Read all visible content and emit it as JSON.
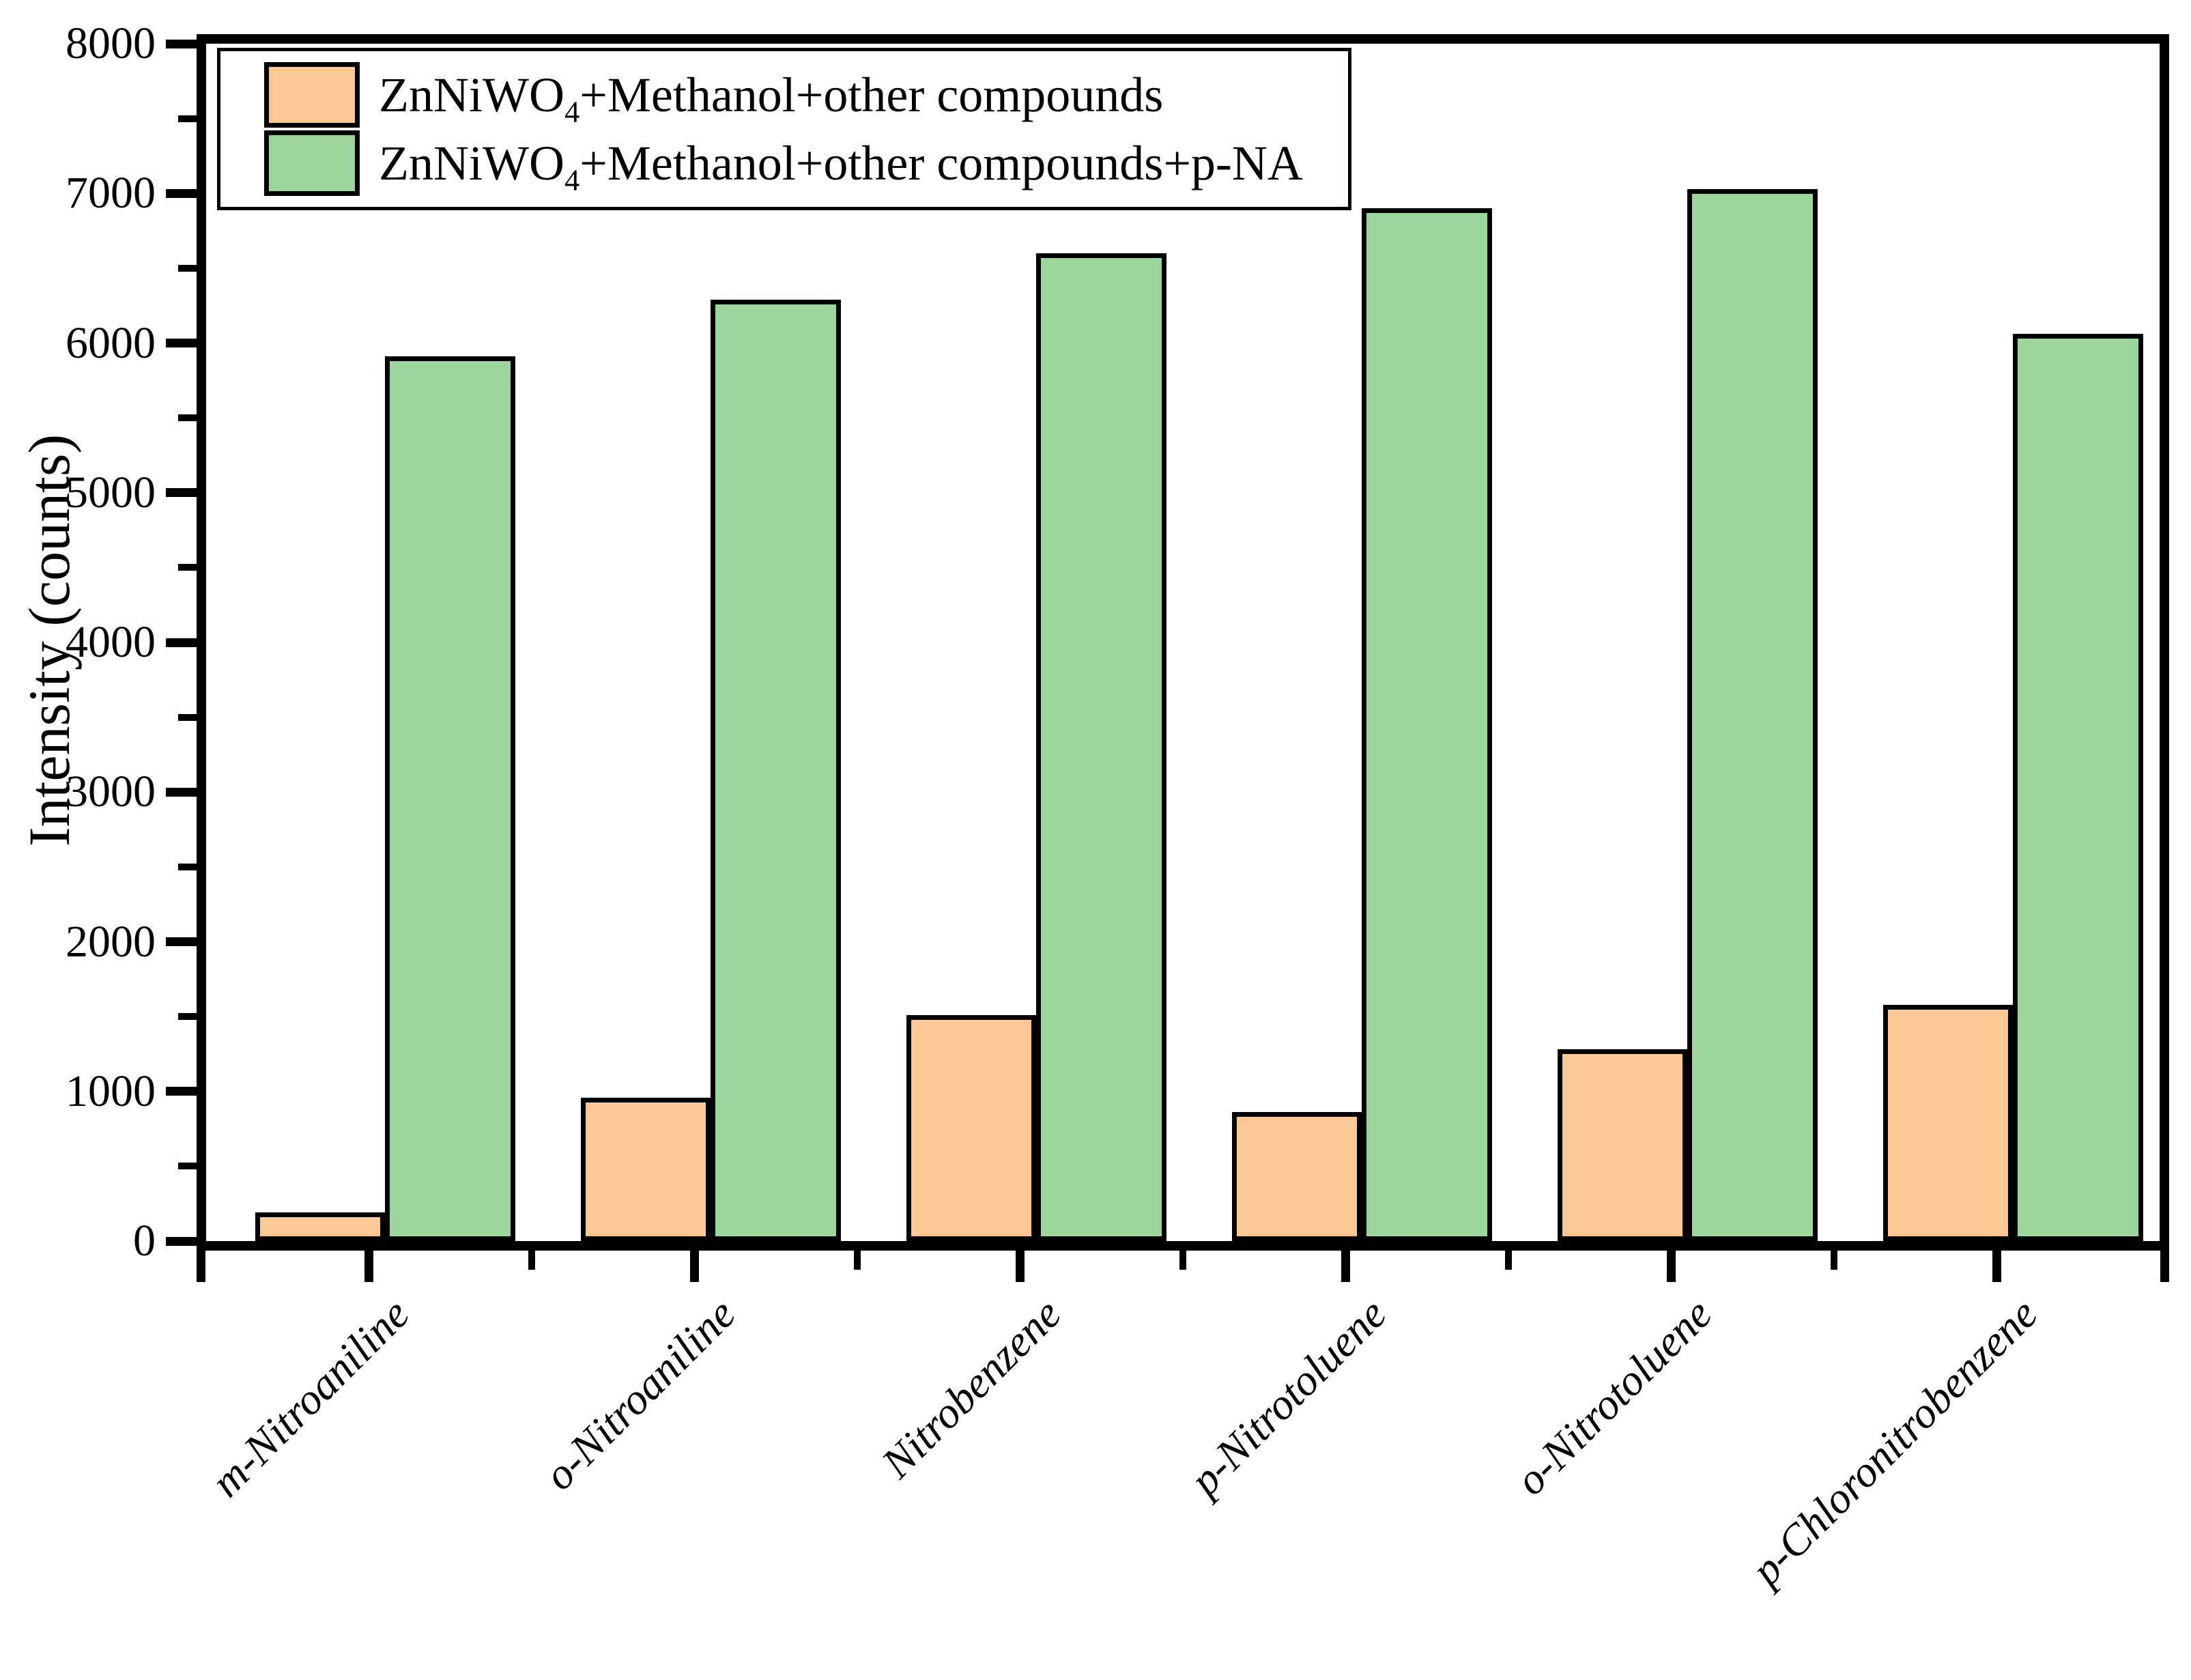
{
  "chart_data": {
    "type": "bar",
    "title": "",
    "xlabel": "",
    "ylabel": "Intensity (counts)",
    "ylim": [
      0,
      8000
    ],
    "ytick_step": 1000,
    "ytick_minor_step": 500,
    "yticks": [
      0,
      1000,
      2000,
      3000,
      4000,
      5000,
      6000,
      7000,
      8000
    ],
    "grid": false,
    "legend_position": "top-left",
    "background_color": "#ffffff",
    "axis_color": "#000000",
    "bar_border_color": "#000000",
    "categories": [
      "m-Nitroaniline",
      "o-Nitroaniline",
      "Nitrobenzene",
      "p-Nitrotoluene",
      "o-Nitrotoluene",
      "p-Chloronitrobenzene"
    ],
    "series": [
      {
        "name": "ZnNiWO4+Methanol+other compounds",
        "name_parts": {
          "base": "ZnNiWO",
          "sub": "4",
          "rest": "+Methanol+other compounds"
        },
        "color": "#FBC794",
        "values": [
          190,
          960,
          1510,
          860,
          1280,
          1580
        ]
      },
      {
        "name": "ZnNiWO4+Methanol+other compounds+p-NA",
        "name_parts": {
          "base": "ZnNiWO",
          "sub": "4",
          "rest": "+Methanol+other compounds+p-NA"
        },
        "color": "#9CD69C",
        "values": [
          5910,
          6290,
          6600,
          6900,
          7030,
          6060
        ]
      }
    ]
  }
}
